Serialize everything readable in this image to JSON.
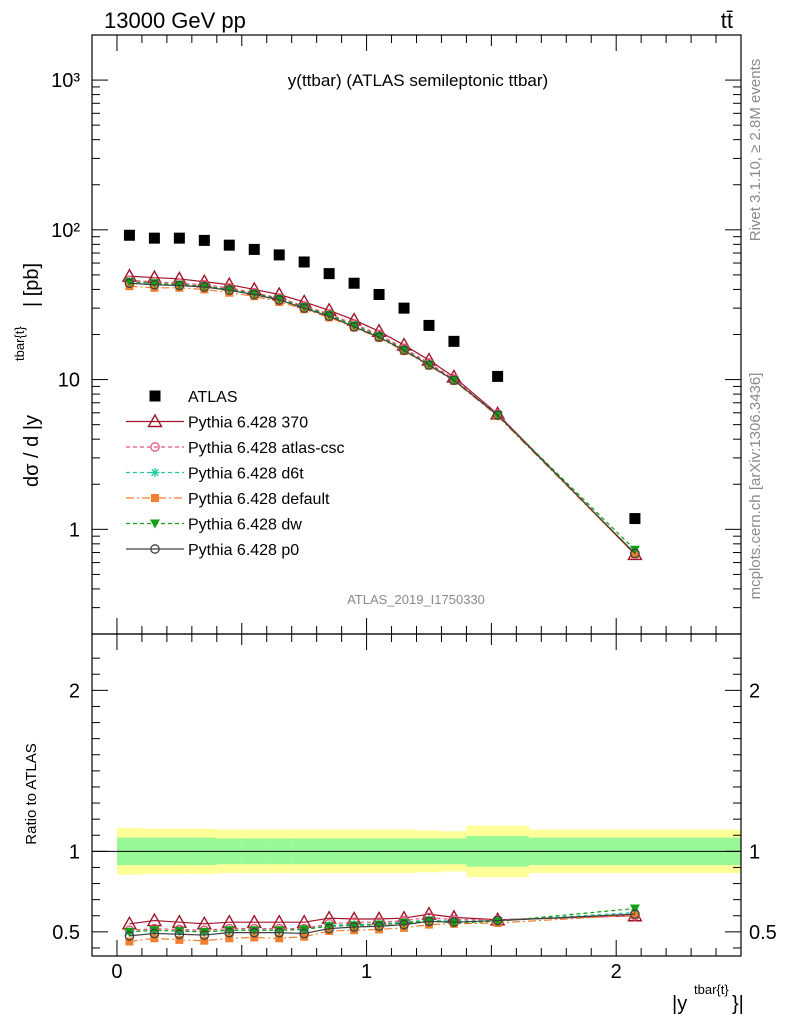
{
  "header": {
    "energy_label": "13000 GeV pp",
    "process_label": "tt̄"
  },
  "side_text": {
    "rivet": "Rivet 3.1.10, ≥ 2.8M events",
    "mcplots": "mcplots.cern.ch [arXiv:1306.3436]"
  },
  "chart_data": [
    {
      "type": "scatter",
      "title": "y(ttbar) (ATLAS semileptonic ttbar)",
      "analysis_id": "ATLAS_2019_I1750330",
      "ylabel": "dσ / d |y^{tbar{t}}| [pb]",
      "ylabel_main": "dσ / d |y",
      "ylabel_sup": "tbar{t}",
      "ylabel_tail": "| [pb]",
      "yscale": "log",
      "ylim": [
        0.2,
        2000
      ],
      "xlim": [
        -0.1,
        2.5
      ],
      "ytick_labels": [
        "1",
        "10",
        "10²",
        "10³"
      ],
      "legend_position": "middle-left",
      "x": [
        0.05,
        0.15,
        0.25,
        0.35,
        0.45,
        0.55,
        0.65,
        0.75,
        0.85,
        0.95,
        1.05,
        1.15,
        1.25,
        1.35,
        1.525,
        2.075
      ],
      "series": [
        {
          "name": "ATLAS",
          "color": "#000000",
          "marker": "square",
          "values": [
            92,
            88,
            88,
            85,
            79,
            74,
            68,
            61,
            51,
            44,
            37,
            30,
            23,
            18,
            10.5,
            1.18
          ]
        },
        {
          "name": "Pythia 6.428 370",
          "color": "#a0142a",
          "marker": "triangle-open",
          "dash": "solid",
          "values": [
            49,
            48,
            47,
            45,
            43,
            40,
            37,
            33,
            29,
            25,
            21,
            17,
            13.5,
            10.4,
            5.9,
            0.68
          ]
        },
        {
          "name": "Pythia 6.428 atlas-csc",
          "color": "#e8527a",
          "marker": "circle-open",
          "dash": "4,3",
          "values": [
            46,
            45,
            44,
            43,
            41,
            38,
            35,
            31,
            27.5,
            23.5,
            20,
            16.2,
            12.9,
            10.1,
            5.9,
            0.69
          ]
        },
        {
          "name": "Pythia 6.428 d6t",
          "color": "#20c8a0",
          "marker": "star",
          "dash": "4,3",
          "values": [
            45,
            44,
            43,
            42,
            40,
            37.5,
            34.5,
            30.5,
            27,
            23,
            19.5,
            15.9,
            12.6,
            9.9,
            5.8,
            0.69
          ]
        },
        {
          "name": "Pythia 6.428 default",
          "color": "#f08030",
          "marker": "square-filled",
          "dash": "8,3,2,3",
          "values": [
            42,
            41,
            41,
            40,
            38,
            36,
            33,
            29.5,
            26,
            22.3,
            19,
            15.5,
            12.4,
            9.8,
            5.7,
            0.68
          ]
        },
        {
          "name": "Pythia 6.428 dw",
          "color": "#14a014",
          "marker": "triangle-down",
          "dash": "4,3",
          "values": [
            45,
            44,
            43,
            42,
            40,
            37.5,
            34.5,
            30.5,
            27,
            23,
            19.5,
            15.8,
            12.6,
            9.9,
            5.8,
            0.73
          ]
        },
        {
          "name": "Pythia 6.428 p0",
          "color": "#404040",
          "marker": "circle-open",
          "dash": "solid",
          "values": [
            44,
            43,
            42.5,
            41.5,
            39.5,
            37,
            34,
            30,
            26.5,
            22.5,
            19.2,
            15.7,
            12.5,
            9.9,
            5.8,
            0.69
          ]
        }
      ]
    },
    {
      "type": "scatter",
      "ylabel": "Ratio to ATLAS",
      "xlabel": "|y^{tbar{t}}|",
      "xlabel_main": "|y",
      "xlabel_sup": "tbar{t}",
      "xlabel_tail": "}|",
      "ylim": [
        0.35,
        2.35
      ],
      "xlim": [
        -0.1,
        2.5
      ],
      "xtick_labels": [
        "0",
        "1",
        "2"
      ],
      "ytick_labels": [
        "0.5",
        "1",
        "2"
      ],
      "bands": {
        "edges": [
          0.0,
          0.1,
          0.2,
          0.3,
          0.4,
          0.5,
          0.6,
          0.7,
          0.8,
          0.9,
          1.0,
          1.1,
          1.2,
          1.3,
          1.4,
          1.65,
          2.5
        ],
        "green_half": [
          0.085,
          0.085,
          0.085,
          0.085,
          0.08,
          0.08,
          0.08,
          0.08,
          0.08,
          0.08,
          0.08,
          0.08,
          0.08,
          0.08,
          0.095,
          0.085
        ],
        "yellow_half": [
          0.145,
          0.14,
          0.14,
          0.14,
          0.135,
          0.135,
          0.135,
          0.135,
          0.135,
          0.135,
          0.135,
          0.135,
          0.13,
          0.125,
          0.16,
          0.135
        ],
        "green_color": "#98f898",
        "yellow_color": "#ffff99"
      },
      "reference_line": 1,
      "series": [
        {
          "name": "Pythia 6.428 370",
          "values": [
            0.55,
            0.57,
            0.56,
            0.55,
            0.56,
            0.56,
            0.56,
            0.56,
            0.585,
            0.58,
            0.58,
            0.585,
            0.61,
            0.59,
            0.575,
            0.6
          ]
        },
        {
          "name": "Pythia 6.428 atlas-csc",
          "values": [
            0.51,
            0.52,
            0.515,
            0.51,
            0.52,
            0.52,
            0.52,
            0.52,
            0.55,
            0.56,
            0.56,
            0.57,
            0.59,
            0.575,
            0.575,
            0.6
          ]
        },
        {
          "name": "Pythia 6.428 d6t",
          "values": [
            0.5,
            0.51,
            0.505,
            0.5,
            0.51,
            0.51,
            0.51,
            0.515,
            0.54,
            0.545,
            0.55,
            0.56,
            0.575,
            0.565,
            0.57,
            0.62
          ]
        },
        {
          "name": "Pythia 6.428 default",
          "values": [
            0.44,
            0.46,
            0.45,
            0.445,
            0.46,
            0.465,
            0.46,
            0.47,
            0.505,
            0.51,
            0.515,
            0.525,
            0.545,
            0.55,
            0.555,
            0.605
          ]
        },
        {
          "name": "Pythia 6.428 dw",
          "values": [
            0.5,
            0.51,
            0.505,
            0.5,
            0.51,
            0.51,
            0.51,
            0.515,
            0.535,
            0.54,
            0.545,
            0.555,
            0.57,
            0.555,
            0.565,
            0.645
          ]
        },
        {
          "name": "Pythia 6.428 p0",
          "values": [
            0.475,
            0.49,
            0.485,
            0.48,
            0.495,
            0.495,
            0.495,
            0.49,
            0.52,
            0.53,
            0.535,
            0.545,
            0.565,
            0.56,
            0.57,
            0.61
          ]
        }
      ]
    }
  ]
}
